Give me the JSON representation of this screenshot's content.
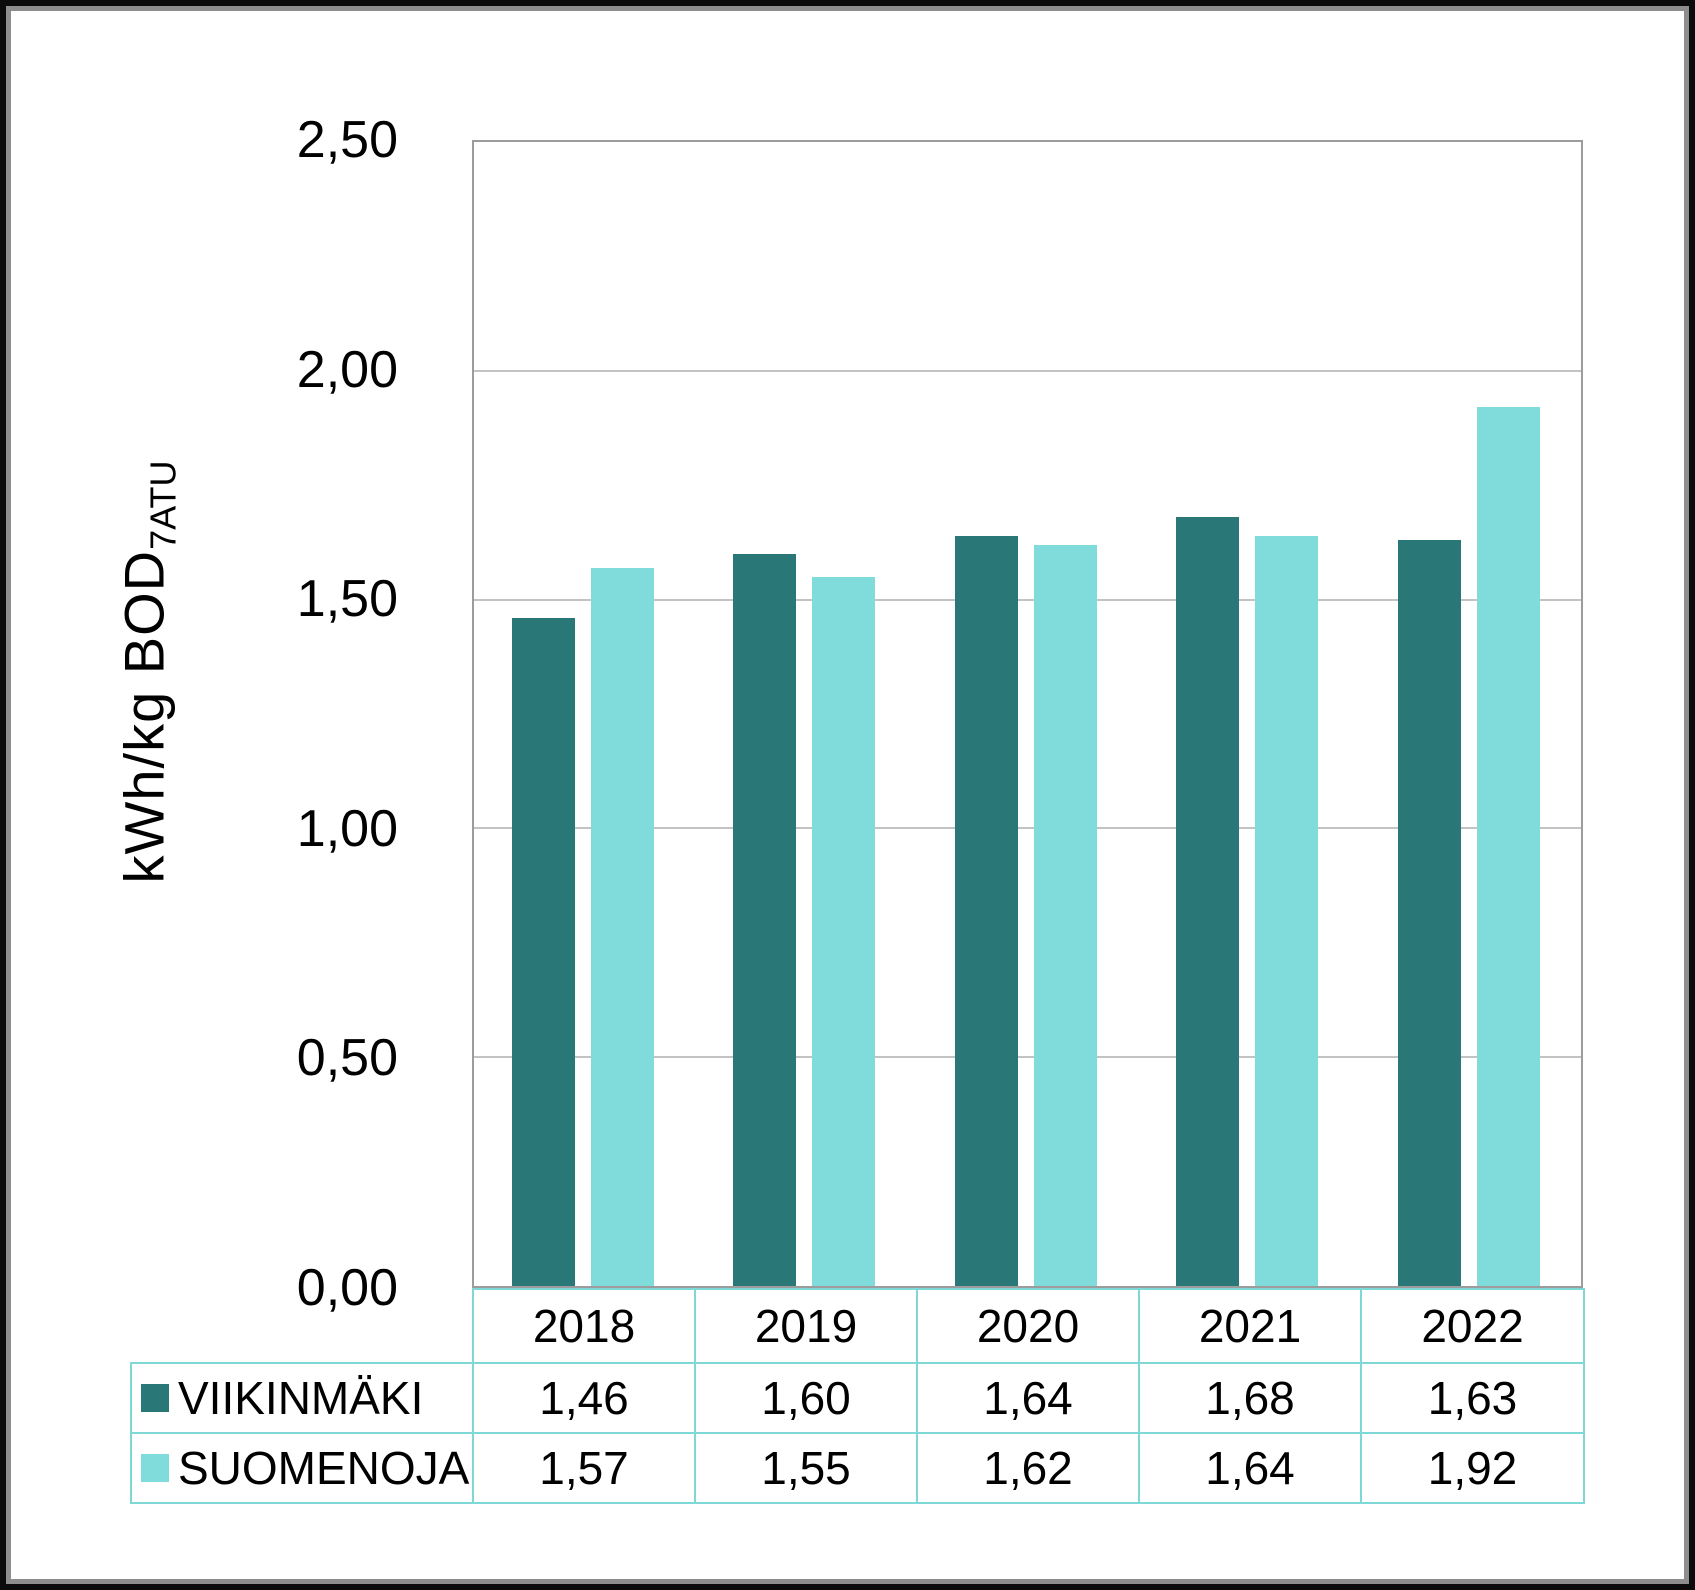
{
  "chart_data": {
    "type": "bar",
    "categories": [
      "2018",
      "2019",
      "2020",
      "2021",
      "2022"
    ],
    "series": [
      {
        "name": "VIIKINMÄKI",
        "color": "#2A7778",
        "values": [
          1.46,
          1.6,
          1.64,
          1.68,
          1.63
        ],
        "labels": [
          "1,46",
          "1,60",
          "1,64",
          "1,68",
          "1,63"
        ]
      },
      {
        "name": "SUOMENOJA",
        "color": "#80DCDA",
        "values": [
          1.57,
          1.55,
          1.62,
          1.64,
          1.92
        ],
        "labels": [
          "1,57",
          "1,55",
          "1,62",
          "1,64",
          "1,92"
        ]
      }
    ],
    "title": "",
    "xlabel": "",
    "ylabel_main": "kWh/kg BOD",
    "ylabel_sub": "7ATU",
    "ylim": [
      0,
      2.5
    ],
    "ytick_step": 0.5,
    "yticks": [
      "0,00",
      "0,50",
      "1,00",
      "1,50",
      "2,00",
      "2,50"
    ],
    "grid": true,
    "legend_position": "table-left-of-rows",
    "decimal_separator": ","
  },
  "colors": {
    "series_dark": "#2A7778",
    "series_light": "#80DCDA",
    "table_border": "#7ED8D5",
    "gridline": "#C3C3C3",
    "plot_border": "#9C9C9C",
    "frame_outer": "#0B0B0B",
    "frame_inner": "#8E8E8E",
    "text": "#000000",
    "background": "#FFFFFF"
  }
}
